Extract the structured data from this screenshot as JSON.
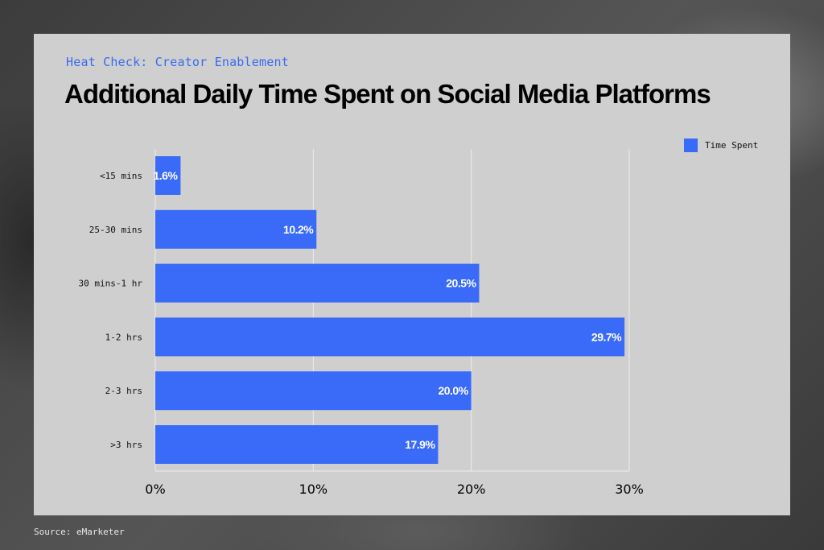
{
  "header": {
    "kicker": "Heat Check: Creator Enablement",
    "title": "Additional Daily Time Spent on Social Media Platforms"
  },
  "footer": {
    "source": "Source: eMarketer"
  },
  "colors": {
    "bar": "#3a6af8",
    "kicker": "#3a6af0",
    "panel": "#cfcfcf"
  },
  "chart_data": {
    "type": "bar",
    "orientation": "horizontal",
    "title": "Additional Daily Time Spent on Social Media Platforms",
    "categories": [
      "<15 mins",
      "25-30 mins",
      "30 mins-1 hr",
      "1-2 hrs",
      "2-3 hrs",
      ">3 hrs"
    ],
    "series": [
      {
        "name": "Time Spent",
        "values": [
          1.6,
          10.2,
          20.5,
          29.7,
          20.0,
          17.9
        ]
      }
    ],
    "value_labels": [
      "1.6%",
      "10.2%",
      "20.5%",
      "29.7%",
      "20.0%",
      "17.9%"
    ],
    "xticks": [
      0,
      10,
      20,
      30
    ],
    "xtick_labels": [
      "0%",
      "10%",
      "20%",
      "30%"
    ],
    "xlim": [
      0,
      30
    ],
    "grid": true,
    "legend": "top-right"
  }
}
